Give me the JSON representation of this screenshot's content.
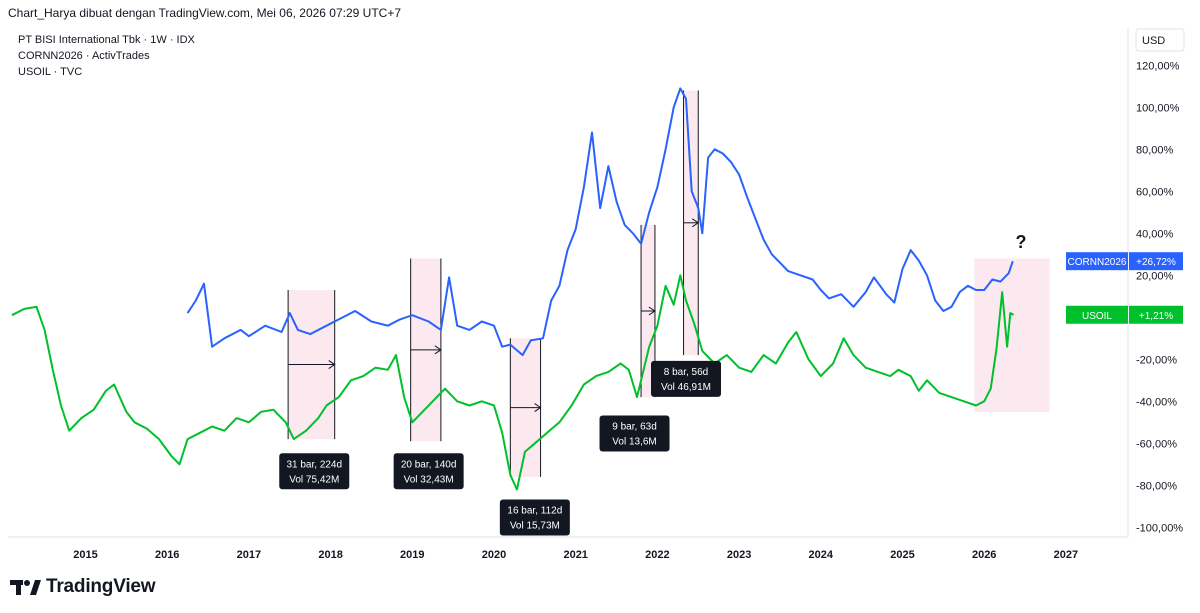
{
  "header": {
    "text": "Chart_Harya dibuat dengan TradingView.com, Mei 06, 2026 07:29 UTC+7"
  },
  "legend": {
    "line1": "PT BISI International Tbk · 1W · IDX",
    "line2": "CORNN2026 · ActivTrades",
    "line3": "USOIL · TVC"
  },
  "brand": {
    "name": "TradingView"
  },
  "colors": {
    "corn": "#2962ff",
    "oil": "#00c02b",
    "shade": "#fce4ec",
    "label_bg": "#131722"
  },
  "chart_data": {
    "type": "line",
    "currency": "USD",
    "x_ticks": [
      "2015",
      "2016",
      "2017",
      "2018",
      "2019",
      "2020",
      "2021",
      "2022",
      "2023",
      "2024",
      "2025",
      "2026",
      "2027"
    ],
    "y_ticks": [
      "120,00%",
      "100,00%",
      "80,00%",
      "60,00%",
      "40,00%",
      "20,00%",
      "-20,00%",
      "-40,00%",
      "-60,00%",
      "-80,00%",
      "-100,00%"
    ],
    "xlim": [
      2014.1,
      2027.4
    ],
    "ylim": [
      -100,
      120
    ],
    "series": [
      {
        "name": "CORNN2026",
        "last_label": "+26,72%",
        "color": "#2962ff",
        "points": [
          [
            2016.25,
            2
          ],
          [
            2016.35,
            8
          ],
          [
            2016.45,
            16
          ],
          [
            2016.55,
            -14
          ],
          [
            2016.7,
            -10
          ],
          [
            2016.9,
            -6
          ],
          [
            2017.0,
            -9
          ],
          [
            2017.2,
            -4
          ],
          [
            2017.4,
            -7
          ],
          [
            2017.5,
            2
          ],
          [
            2017.6,
            -6
          ],
          [
            2017.75,
            -8
          ],
          [
            2017.9,
            -5
          ],
          [
            2018.1,
            -1
          ],
          [
            2018.3,
            3
          ],
          [
            2018.5,
            -2
          ],
          [
            2018.7,
            -4
          ],
          [
            2018.85,
            -1
          ],
          [
            2019.0,
            1
          ],
          [
            2019.2,
            -2
          ],
          [
            2019.35,
            -6
          ],
          [
            2019.45,
            19
          ],
          [
            2019.55,
            -4
          ],
          [
            2019.7,
            -6
          ],
          [
            2019.85,
            -2
          ],
          [
            2020.0,
            -4
          ],
          [
            2020.1,
            -14
          ],
          [
            2020.2,
            -13
          ],
          [
            2020.35,
            -18
          ],
          [
            2020.45,
            -11
          ],
          [
            2020.6,
            -10
          ],
          [
            2020.7,
            8
          ],
          [
            2020.8,
            15
          ],
          [
            2020.9,
            32
          ],
          [
            2021.0,
            42
          ],
          [
            2021.1,
            62
          ],
          [
            2021.2,
            88
          ],
          [
            2021.3,
            52
          ],
          [
            2021.4,
            72
          ],
          [
            2021.5,
            55
          ],
          [
            2021.6,
            44
          ],
          [
            2021.7,
            40
          ],
          [
            2021.8,
            35
          ],
          [
            2021.9,
            50
          ],
          [
            2022.0,
            62
          ],
          [
            2022.1,
            80
          ],
          [
            2022.2,
            100
          ],
          [
            2022.28,
            109
          ],
          [
            2022.35,
            104
          ],
          [
            2022.42,
            60
          ],
          [
            2022.5,
            52
          ],
          [
            2022.55,
            40
          ],
          [
            2022.62,
            76
          ],
          [
            2022.7,
            80
          ],
          [
            2022.8,
            78
          ],
          [
            2022.9,
            74
          ],
          [
            2023.0,
            68
          ],
          [
            2023.1,
            57
          ],
          [
            2023.2,
            47
          ],
          [
            2023.3,
            37
          ],
          [
            2023.4,
            30
          ],
          [
            2023.5,
            26
          ],
          [
            2023.6,
            22
          ],
          [
            2023.75,
            20
          ],
          [
            2023.9,
            18
          ],
          [
            2024.0,
            13
          ],
          [
            2024.1,
            9
          ],
          [
            2024.25,
            11
          ],
          [
            2024.4,
            5
          ],
          [
            2024.55,
            12
          ],
          [
            2024.65,
            19
          ],
          [
            2024.8,
            11
          ],
          [
            2024.9,
            7
          ],
          [
            2025.0,
            23
          ],
          [
            2025.1,
            32
          ],
          [
            2025.2,
            27
          ],
          [
            2025.3,
            20
          ],
          [
            2025.4,
            8
          ],
          [
            2025.5,
            3
          ],
          [
            2025.6,
            5
          ],
          [
            2025.7,
            12
          ],
          [
            2025.8,
            15
          ],
          [
            2025.9,
            13
          ],
          [
            2026.0,
            13
          ],
          [
            2026.1,
            18
          ],
          [
            2026.2,
            17
          ],
          [
            2026.3,
            21
          ],
          [
            2026.35,
            26.72
          ]
        ]
      },
      {
        "name": "USOIL",
        "last_label": "+1,21%",
        "color": "#00c02b",
        "points": [
          [
            2014.1,
            1
          ],
          [
            2014.25,
            4
          ],
          [
            2014.4,
            5
          ],
          [
            2014.5,
            -6
          ],
          [
            2014.6,
            -25
          ],
          [
            2014.7,
            -42
          ],
          [
            2014.8,
            -54
          ],
          [
            2014.95,
            -48
          ],
          [
            2015.1,
            -44
          ],
          [
            2015.25,
            -35
          ],
          [
            2015.35,
            -32
          ],
          [
            2015.5,
            -45
          ],
          [
            2015.6,
            -50
          ],
          [
            2015.75,
            -53
          ],
          [
            2015.9,
            -58
          ],
          [
            2016.05,
            -66
          ],
          [
            2016.15,
            -70
          ],
          [
            2016.25,
            -58
          ],
          [
            2016.4,
            -55
          ],
          [
            2016.55,
            -52
          ],
          [
            2016.7,
            -54
          ],
          [
            2016.85,
            -48
          ],
          [
            2017.0,
            -50
          ],
          [
            2017.15,
            -45
          ],
          [
            2017.3,
            -44
          ],
          [
            2017.45,
            -50
          ],
          [
            2017.55,
            -58
          ],
          [
            2017.7,
            -54
          ],
          [
            2017.85,
            -48
          ],
          [
            2017.95,
            -42
          ],
          [
            2018.1,
            -38
          ],
          [
            2018.25,
            -30
          ],
          [
            2018.4,
            -28
          ],
          [
            2018.55,
            -24
          ],
          [
            2018.7,
            -25
          ],
          [
            2018.8,
            -18
          ],
          [
            2018.9,
            -38
          ],
          [
            2019.0,
            -50
          ],
          [
            2019.15,
            -44
          ],
          [
            2019.3,
            -38
          ],
          [
            2019.4,
            -34
          ],
          [
            2019.55,
            -40
          ],
          [
            2019.7,
            -42
          ],
          [
            2019.85,
            -40
          ],
          [
            2020.0,
            -42
          ],
          [
            2020.1,
            -55
          ],
          [
            2020.2,
            -75
          ],
          [
            2020.28,
            -82
          ],
          [
            2020.38,
            -64
          ],
          [
            2020.5,
            -60
          ],
          [
            2020.65,
            -55
          ],
          [
            2020.8,
            -50
          ],
          [
            2020.95,
            -42
          ],
          [
            2021.1,
            -32
          ],
          [
            2021.25,
            -28
          ],
          [
            2021.4,
            -26
          ],
          [
            2021.55,
            -22
          ],
          [
            2021.65,
            -25
          ],
          [
            2021.75,
            -38
          ],
          [
            2021.9,
            -14
          ],
          [
            2022.0,
            -4
          ],
          [
            2022.1,
            15
          ],
          [
            2022.2,
            6
          ],
          [
            2022.28,
            20
          ],
          [
            2022.35,
            8
          ],
          [
            2022.45,
            -3
          ],
          [
            2022.55,
            -16
          ],
          [
            2022.7,
            -22
          ],
          [
            2022.85,
            -18
          ],
          [
            2023.0,
            -24
          ],
          [
            2023.15,
            -26
          ],
          [
            2023.3,
            -18
          ],
          [
            2023.45,
            -22
          ],
          [
            2023.6,
            -12
          ],
          [
            2023.7,
            -7
          ],
          [
            2023.85,
            -20
          ],
          [
            2024.0,
            -28
          ],
          [
            2024.15,
            -22
          ],
          [
            2024.28,
            -10
          ],
          [
            2024.4,
            -18
          ],
          [
            2024.55,
            -24
          ],
          [
            2024.7,
            -26
          ],
          [
            2024.85,
            -28
          ],
          [
            2024.95,
            -25
          ],
          [
            2025.1,
            -28
          ],
          [
            2025.2,
            -35
          ],
          [
            2025.3,
            -30
          ],
          [
            2025.45,
            -36
          ],
          [
            2025.6,
            -38
          ],
          [
            2025.75,
            -40
          ],
          [
            2025.9,
            -42
          ],
          [
            2026.0,
            -40
          ],
          [
            2026.08,
            -34
          ],
          [
            2026.15,
            -15
          ],
          [
            2026.22,
            12
          ],
          [
            2026.28,
            -14
          ],
          [
            2026.32,
            2
          ],
          [
            2026.36,
            1.21
          ]
        ]
      }
    ],
    "annotations": [
      {
        "text": "31 bar, 224d",
        "vol": "Vol 75,42M"
      },
      {
        "text": "20 bar, 140d",
        "vol": "Vol 32,43M"
      },
      {
        "text": "16 bar, 112d",
        "vol": "Vol 15,73M"
      },
      {
        "text": "9 bar, 63d",
        "vol": "Vol 13,6M"
      },
      {
        "text": "8 bar, 56d",
        "vol": "Vol 46,91M"
      }
    ],
    "question_mark": "?"
  }
}
